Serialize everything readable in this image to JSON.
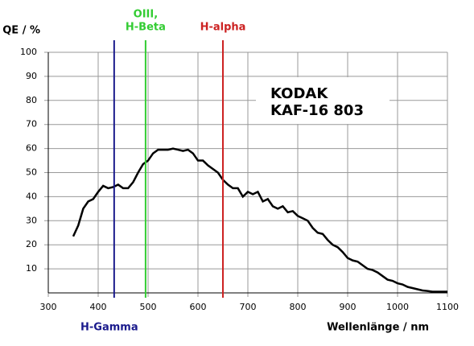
{
  "chart_data": {
    "type": "line",
    "y_label": "QE / %",
    "x_label": "Wellenlänge / nm",
    "annotation": [
      "KODAK",
      "KAF-16 803"
    ],
    "xlim": [
      300,
      1100
    ],
    "ylim": [
      0,
      100
    ],
    "xticks": [
      300,
      400,
      500,
      600,
      700,
      800,
      900,
      1000,
      1100
    ],
    "yticks": [
      10,
      20,
      30,
      40,
      50,
      60,
      70,
      80,
      90,
      100
    ],
    "grid": true,
    "markers": [
      {
        "label": [
          "H-Gamma"
        ],
        "x": 432,
        "color": "#1a1a8c"
      },
      {
        "label": [
          "OIII,",
          "H-Beta"
        ],
        "x": 495,
        "color": "#33cc33"
      },
      {
        "label": [
          "H-alpha"
        ],
        "x": 650,
        "color": "#cc2222"
      }
    ],
    "x": [
      350,
      360,
      370,
      380,
      390,
      400,
      410,
      420,
      430,
      440,
      450,
      460,
      470,
      480,
      490,
      500,
      510,
      520,
      530,
      540,
      550,
      560,
      570,
      580,
      590,
      600,
      610,
      620,
      630,
      640,
      650,
      660,
      670,
      680,
      690,
      700,
      710,
      720,
      730,
      740,
      750,
      760,
      770,
      780,
      790,
      800,
      810,
      820,
      830,
      840,
      850,
      860,
      870,
      880,
      890,
      900,
      910,
      920,
      930,
      940,
      950,
      960,
      970,
      980,
      990,
      1000,
      1010,
      1020,
      1030,
      1040,
      1050,
      1060,
      1070,
      1080,
      1090,
      1100
    ],
    "series": [
      {
        "color": "#000000",
        "values": [
          23.5,
          28,
          35,
          38,
          39,
          42,
          44.5,
          43.5,
          44,
          45,
          43.5,
          43.5,
          46,
          50,
          53.5,
          55,
          58,
          59.5,
          59.5,
          59.5,
          60,
          59.5,
          59,
          59.5,
          58,
          55,
          55,
          53,
          51.5,
          50,
          47,
          45,
          43.5,
          43.5,
          40,
          42,
          41,
          42,
          38,
          39,
          36,
          35,
          36,
          33.5,
          34,
          32,
          31,
          30,
          27,
          25,
          24.5,
          22,
          20,
          19,
          17,
          14.5,
          13.5,
          13,
          11.5,
          10,
          9.5,
          8.5,
          7,
          5.5,
          5,
          4,
          3.5,
          2.5,
          2,
          1.5,
          1,
          0.8,
          0.5,
          0.5,
          0.5,
          0.5
        ]
      }
    ]
  }
}
